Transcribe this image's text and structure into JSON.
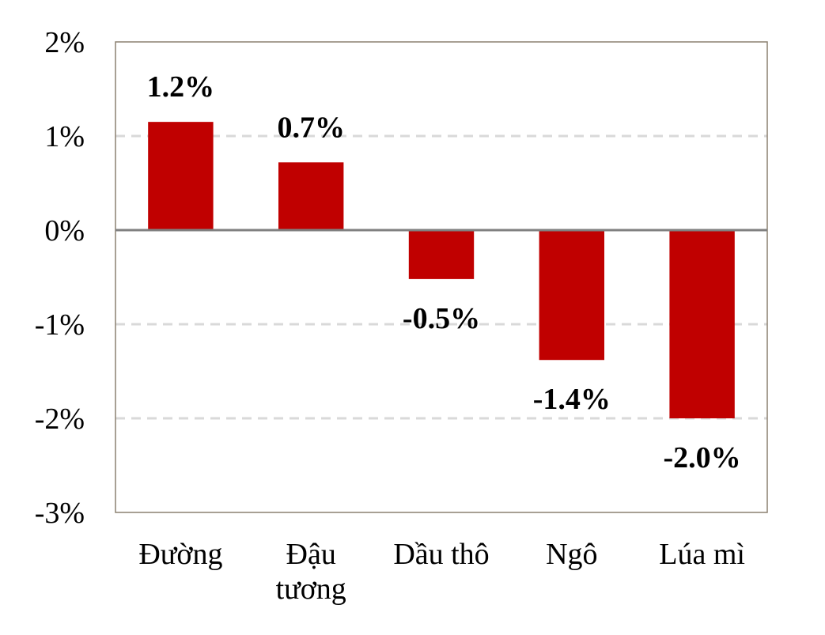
{
  "chart_data": {
    "type": "bar",
    "categories": [
      "Đường",
      "Đậu tương",
      "Dầu thô",
      "Ngô",
      "Lúa mì"
    ],
    "category_lines": [
      [
        "Đường"
      ],
      [
        "Đậu",
        "tương"
      ],
      [
        "Dầu thô"
      ],
      [
        "Ngô"
      ],
      [
        "Lúa mì"
      ]
    ],
    "values": [
      1.15,
      0.72,
      -0.52,
      -1.38,
      -2.0
    ],
    "data_labels": [
      "1.2%",
      "0.7%",
      "-0.5%",
      "-1.4%",
      "-2.0%"
    ],
    "title": "",
    "xlabel": "",
    "ylabel": "",
    "ylim": [
      -3,
      2
    ],
    "yticks": [
      2,
      1,
      0,
      -1,
      -2,
      -3
    ],
    "ytick_labels": [
      "2%",
      "1%",
      "0%",
      "-1%",
      "-2%",
      "-3%"
    ],
    "grid": true,
    "colors": {
      "bar": "#c00000",
      "grid": "#d9d9d9",
      "zero_line": "#808080",
      "frame": "#8c8070"
    }
  }
}
